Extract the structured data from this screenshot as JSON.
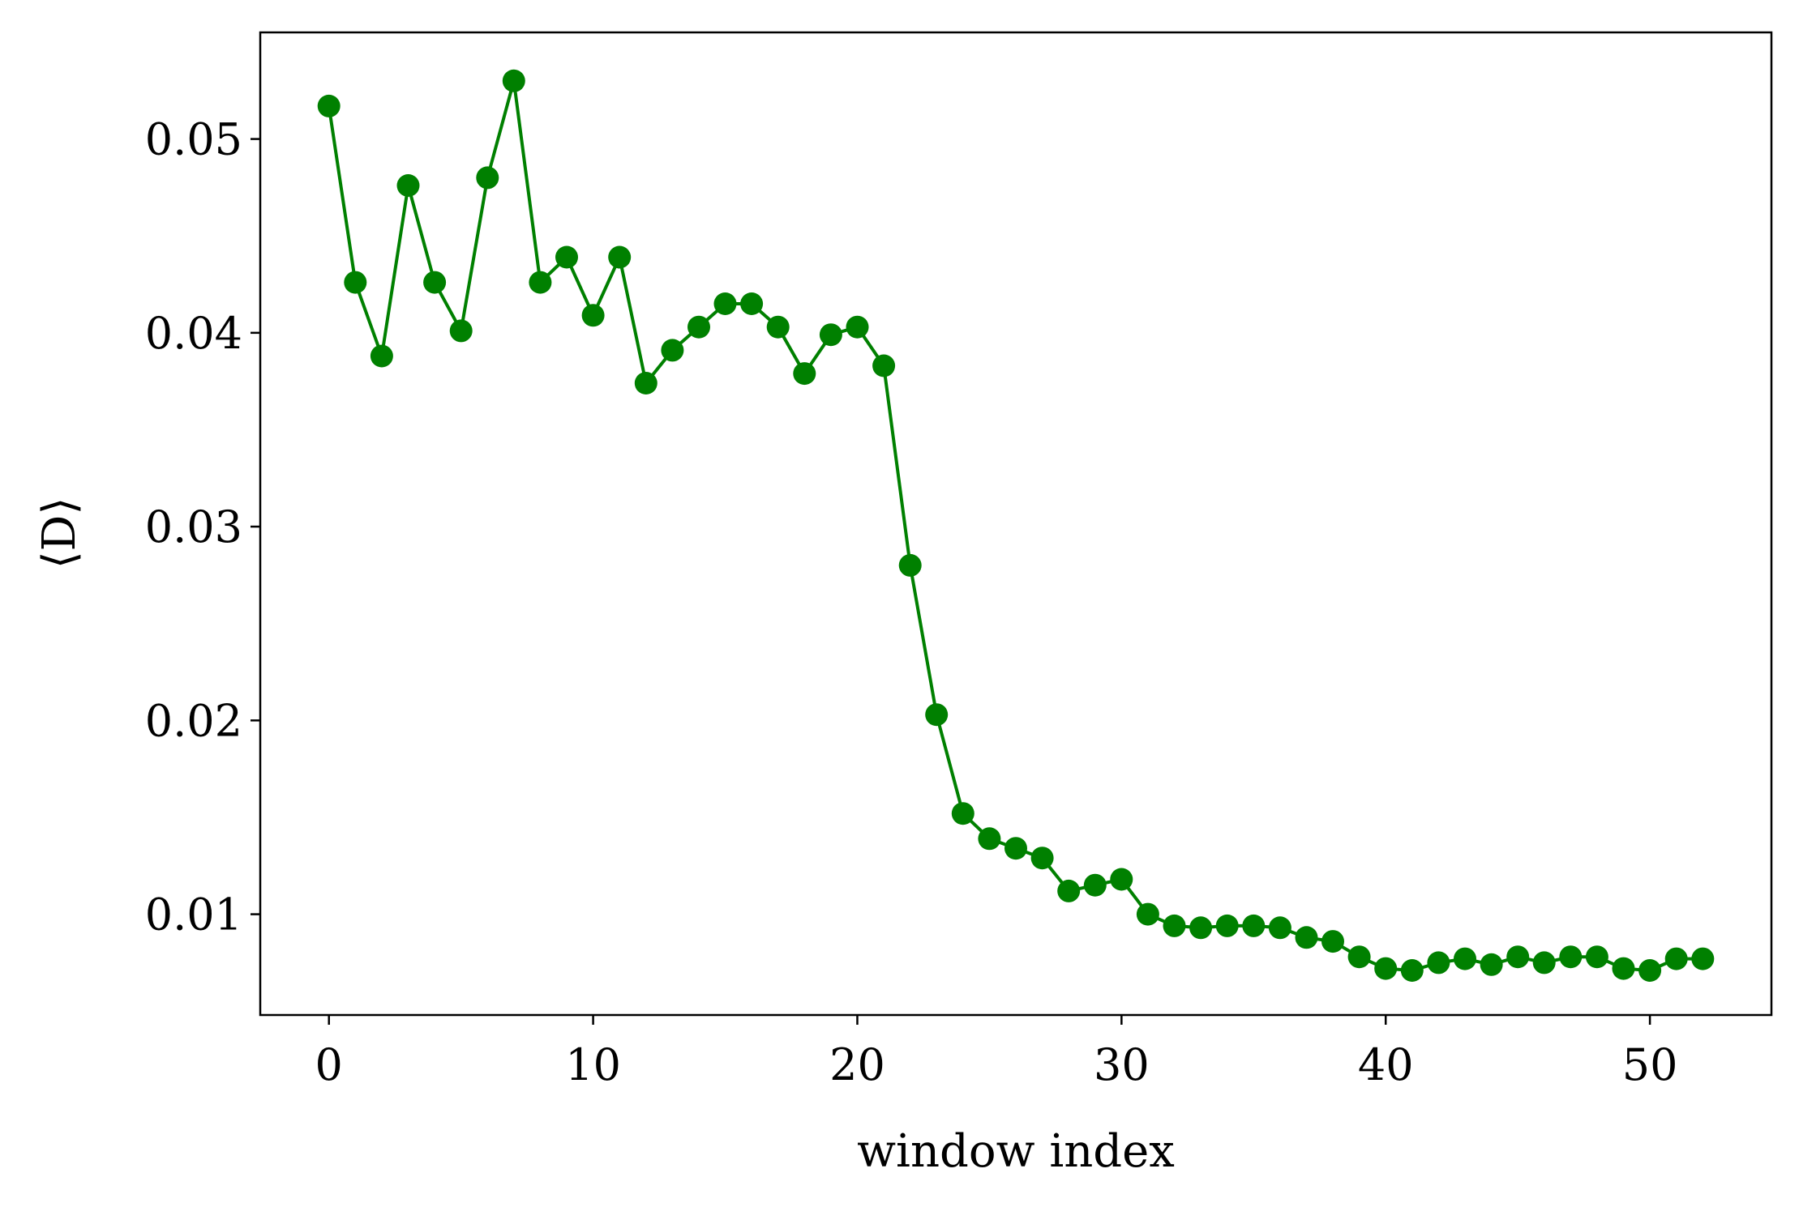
{
  "chart_data": {
    "type": "line",
    "title": "",
    "xlabel": "window index",
    "ylabel": "⟨D⟩",
    "xlim": [
      -2.6,
      54.6
    ],
    "ylim": [
      0.0048,
      0.0555
    ],
    "xticks": [
      0,
      10,
      20,
      30,
      40,
      50
    ],
    "xtick_labels": [
      "0",
      "10",
      "20",
      "30",
      "40",
      "50"
    ],
    "yticks": [
      0.01,
      0.02,
      0.03,
      0.04,
      0.05
    ],
    "ytick_labels": [
      "0.01",
      "0.02",
      "0.03",
      "0.04",
      "0.05"
    ],
    "grid": false,
    "legend": "none",
    "series": [
      {
        "color": "#008000",
        "marker": "circle",
        "x": [
          0,
          1,
          2,
          3,
          4,
          5,
          6,
          7,
          8,
          9,
          10,
          11,
          12,
          13,
          14,
          15,
          16,
          17,
          18,
          19,
          20,
          21,
          22,
          23,
          24,
          25,
          26,
          27,
          28,
          29,
          30,
          31,
          32,
          33,
          34,
          35,
          36,
          37,
          38,
          39,
          40,
          41,
          42,
          43,
          44,
          45,
          46,
          47,
          48,
          49,
          50,
          51,
          52
        ],
        "y": [
          0.0517,
          0.0426,
          0.0388,
          0.0476,
          0.0426,
          0.0401,
          0.048,
          0.053,
          0.0426,
          0.0439,
          0.0409,
          0.0439,
          0.0374,
          0.0391,
          0.0403,
          0.0415,
          0.0415,
          0.0403,
          0.0379,
          0.0399,
          0.0403,
          0.0383,
          0.028,
          0.0203,
          0.0152,
          0.0139,
          0.0134,
          0.0129,
          0.0112,
          0.0115,
          0.0118,
          0.01,
          0.0094,
          0.0093,
          0.0094,
          0.0094,
          0.0093,
          0.0088,
          0.0086,
          0.0078,
          0.0072,
          0.0071,
          0.0075,
          0.0077,
          0.0074,
          0.0078,
          0.0075,
          0.0078,
          0.0078,
          0.0072,
          0.0071,
          0.0077,
          0.0077
        ]
      }
    ]
  }
}
